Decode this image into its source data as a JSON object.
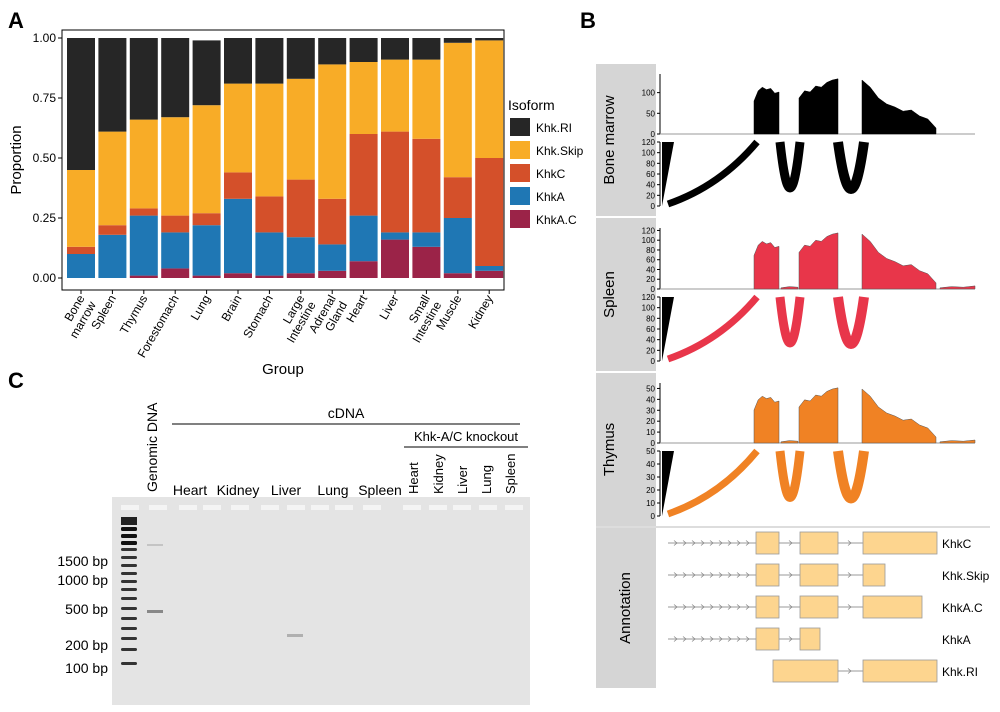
{
  "panel_labels": {
    "a": "A",
    "b": "B",
    "c": "C"
  },
  "chart_data": {
    "type": "bar",
    "stacked": true,
    "xlabel": "Group",
    "ylabel": "Proportion",
    "ylim": [
      0,
      1
    ],
    "yticks": [
      "0.00",
      "0.25",
      "0.50",
      "0.75",
      "1.00"
    ],
    "legend_title": "Isoform",
    "legend_position": "right",
    "categories": [
      [
        "Bone",
        "marrow"
      ],
      [
        "Spleen"
      ],
      [
        "Thymus"
      ],
      [
        "Forestomach"
      ],
      [
        "Lung"
      ],
      [
        "Brain"
      ],
      [
        "Stomach"
      ],
      [
        "Large",
        "Intestine"
      ],
      [
        "Adrenal",
        "Gland"
      ],
      [
        "Heart"
      ],
      [
        "Liver"
      ],
      [
        "Small",
        "Intestine"
      ],
      [
        "Muscle"
      ],
      [
        "Kidney"
      ]
    ],
    "series": [
      {
        "name": "KhkA.C",
        "color": "#9b2348",
        "values": [
          0.0,
          0.0,
          0.01,
          0.04,
          0.01,
          0.02,
          0.01,
          0.02,
          0.03,
          0.07,
          0.16,
          0.13,
          0.02,
          0.03
        ]
      },
      {
        "name": "KhkA",
        "color": "#1f77b4",
        "values": [
          0.1,
          0.18,
          0.25,
          0.15,
          0.21,
          0.31,
          0.18,
          0.15,
          0.11,
          0.19,
          0.03,
          0.06,
          0.23,
          0.02
        ]
      },
      {
        "name": "KhkC",
        "color": "#d4502a",
        "values": [
          0.03,
          0.04,
          0.03,
          0.07,
          0.05,
          0.11,
          0.15,
          0.24,
          0.19,
          0.34,
          0.42,
          0.39,
          0.17,
          0.45
        ]
      },
      {
        "name": "Khk.Skip",
        "color": "#f8ac27",
        "values": [
          0.32,
          0.39,
          0.37,
          0.41,
          0.45,
          0.37,
          0.47,
          0.42,
          0.56,
          0.3,
          0.3,
          0.33,
          0.56,
          0.49
        ]
      },
      {
        "name": "Khk.RI",
        "color": "#262626",
        "values": [
          0.55,
          0.39,
          0.34,
          0.33,
          0.27,
          0.19,
          0.19,
          0.17,
          0.11,
          0.1,
          0.09,
          0.09,
          0.02,
          0.01
        ]
      }
    ],
    "legend_order": [
      "Khk.RI",
      "Khk.Skip",
      "KhkC",
      "KhkA",
      "KhkA.C"
    ]
  },
  "panel_b": {
    "tracks": [
      {
        "name": "Bone marrow",
        "color": "#000000",
        "cov_ticks": [
          "0",
          "50",
          "100"
        ],
        "cov_max": 145,
        "junc_ticks": [
          "0",
          "20",
          "40",
          "60",
          "80",
          "100",
          "120"
        ]
      },
      {
        "name": "Spleen",
        "color": "#e8364a",
        "cov_ticks": [
          "0",
          "20",
          "40",
          "60",
          "80",
          "100",
          "120"
        ],
        "cov_max": 125,
        "junc_ticks": [
          "0",
          "20",
          "40",
          "60",
          "80",
          "100",
          "120"
        ]
      },
      {
        "name": "Thymus",
        "color": "#f08224",
        "cov_ticks": [
          "0",
          "10",
          "20",
          "30",
          "40",
          "50"
        ],
        "cov_max": 55,
        "junc_ticks": [
          "0",
          "10",
          "20",
          "30",
          "40",
          "50"
        ]
      }
    ],
    "annotation_label": "Annotation",
    "transcripts": [
      "KhkC",
      "Khk.Skip",
      "KhkA.C",
      "KhkA",
      "Khk.RI"
    ],
    "exon_color": "#fdd58f"
  },
  "panel_c": {
    "lane_header_genomic": "Genomic DNA",
    "group_cdna": "cDNA",
    "group_knockout": "Khk-A/C knockout",
    "cdna_lanes": [
      "Heart",
      "Kidney",
      "Liver",
      "Lung",
      "Spleen"
    ],
    "knockout_lanes": [
      "Heart",
      "Kidney",
      "Liver",
      "Lung",
      "Spleen"
    ],
    "ladder_labels": [
      "1500 bp",
      "1000 bp",
      "500 bp",
      "200 bp",
      "100 bp"
    ]
  }
}
